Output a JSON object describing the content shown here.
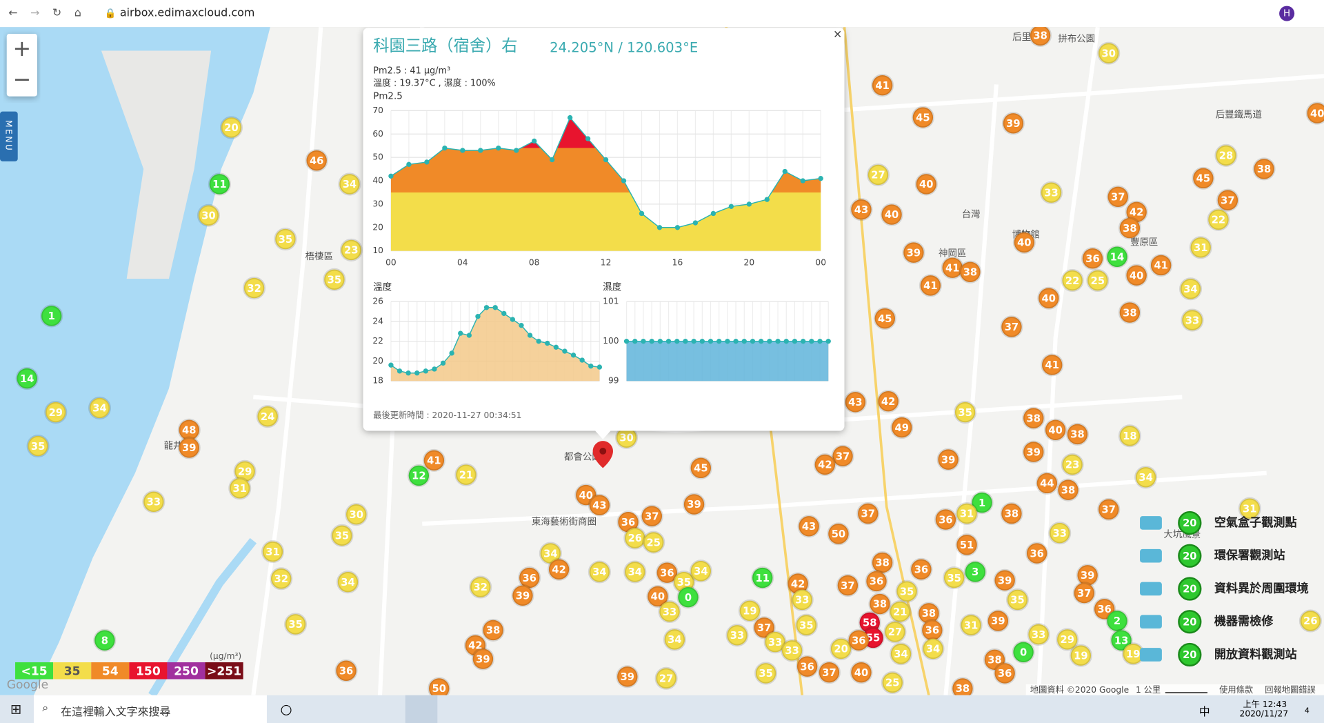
{
  "browser": {
    "url": "airbox.edimaxcloud.com",
    "profile": "H"
  },
  "map": {
    "menu": "MENU",
    "zoom_in": "+",
    "zoom_out": "−",
    "places": [
      "梧棲區",
      "龍井",
      "神岡區",
      "豐原區",
      "東海藝術街商圈",
      "都會公園",
      "后里",
      "拼布公園",
      "后豐鐵馬道",
      "台灣",
      "博物館",
      "大坑風景"
    ],
    "markers": [
      20,
      11,
      30,
      46,
      34,
      35,
      23,
      35,
      32,
      1,
      14,
      34,
      29,
      35,
      48,
      39,
      24,
      29,
      31,
      33,
      30,
      35,
      31,
      32,
      34,
      35,
      8,
      36,
      41,
      12,
      21,
      40,
      43,
      30,
      37,
      36,
      26,
      25,
      39,
      45,
      34,
      42,
      36,
      32,
      39,
      34,
      34,
      36,
      35,
      34,
      40,
      0,
      33,
      34,
      38,
      42,
      39,
      39,
      27,
      50,
      38,
      30,
      41,
      45,
      39,
      27,
      40,
      43,
      40,
      39,
      41,
      38,
      41,
      40,
      33,
      37,
      42,
      38,
      28,
      45,
      37,
      38,
      22,
      31,
      36,
      14,
      40,
      41,
      22,
      25,
      34,
      40,
      38,
      33,
      45,
      37,
      41,
      42,
      43,
      49,
      35,
      38,
      40,
      38,
      39,
      23,
      18,
      39,
      37,
      42,
      44,
      38,
      34,
      1,
      38,
      37,
      37,
      31,
      36,
      51,
      33,
      36,
      43,
      50,
      38,
      36,
      35,
      3,
      39,
      39,
      37,
      35,
      11,
      42,
      37,
      36,
      35,
      38,
      21,
      38,
      33,
      19,
      37,
      35,
      58,
      55,
      27,
      36,
      31,
      39,
      33,
      29,
      36,
      2,
      13,
      0,
      19,
      19,
      26,
      33,
      33,
      33,
      20,
      36,
      34,
      34,
      38,
      40,
      25,
      36,
      35,
      36,
      37,
      38,
      40,
      31
    ],
    "attribution": "地圖資料 ©2020 Google",
    "scale": "1 公里",
    "terms": "使用條款",
    "report": "回報地圖錯誤",
    "logo": "Google"
  },
  "legend": {
    "unit": "(μg/m³)",
    "levels": [
      {
        "value": 15,
        "label": "<15",
        "color": "#3ee03e"
      },
      {
        "value": 35,
        "color": "#f3dd4a"
      },
      {
        "value": 54,
        "color": "#f08a28"
      },
      {
        "value": 150,
        "color": "#e8142e"
      },
      {
        "value": 250,
        "color": "#a1309e"
      },
      {
        "value": 251,
        "label": ">251",
        "color": "#7a0d18"
      }
    ]
  },
  "stations_legend": {
    "badge": 20,
    "items": [
      "空氣盒子觀測點",
      "環保署觀測站",
      "資料異於周圍環境",
      "機器需檢修",
      "開放資料觀測站"
    ]
  },
  "popup": {
    "close": "×",
    "title": "科園三路（宿舍）右",
    "coords": "24.205°N / 120.603°E",
    "pm25_line": "Pm2.5 : 41 μg/m³",
    "weather_line": "溫度 : 19.37°C , 濕度 : 100%",
    "updated": "最後更新時間 : 2020-11-27 00:34:51"
  },
  "chart_data": [
    {
      "type": "area",
      "title": "Pm2.5",
      "x": [
        0,
        1,
        2,
        3,
        4,
        5,
        6,
        7,
        8,
        9,
        10,
        11,
        12,
        13,
        14,
        15,
        16,
        17,
        18,
        19,
        20,
        21,
        22,
        23,
        24
      ],
      "xlim": [
        0,
        24
      ],
      "xticks": [
        {
          "value": 0,
          "label": "00"
        },
        {
          "value": 4,
          "label": "04"
        },
        {
          "value": 8,
          "label": "08"
        },
        12,
        16,
        20,
        {
          "value": 24,
          "label": "00"
        }
      ],
      "ylim": [
        10,
        70
      ],
      "yticks": [
        10,
        20,
        30,
        40,
        50,
        60,
        70
      ],
      "values": [
        42,
        47,
        48,
        54,
        53,
        53,
        54,
        53,
        57,
        49,
        67,
        58,
        49,
        40,
        26,
        20,
        20,
        22,
        26,
        29,
        30,
        32,
        44,
        40,
        41
      ],
      "color": "#2bb3b1"
    },
    {
      "type": "area",
      "title": "溫度",
      "x": [
        0,
        1,
        2,
        3,
        4,
        5,
        6,
        7,
        8,
        9,
        10,
        11,
        12,
        13,
        14,
        15,
        16,
        17,
        18,
        19,
        20,
        21,
        22,
        23,
        24
      ],
      "xlim": [
        0,
        24
      ],
      "ylim": [
        18,
        26
      ],
      "yticks": [
        18,
        20,
        22,
        24,
        26
      ],
      "values": [
        19.6,
        19.0,
        18.8,
        18.8,
        19.0,
        19.2,
        19.8,
        20.8,
        22.8,
        22.6,
        24.5,
        25.4,
        25.4,
        24.8,
        24.2,
        23.6,
        22.6,
        22.0,
        21.8,
        21.4,
        21.0,
        20.6,
        20.1,
        19.5,
        19.4
      ],
      "color": "#2bb3b1",
      "fill": "#f3c98a"
    },
    {
      "type": "area",
      "title": "濕度",
      "x": [
        0,
        1,
        2,
        3,
        4,
        5,
        6,
        7,
        8,
        9,
        10,
        11,
        12,
        13,
        14,
        15,
        16,
        17,
        18,
        19,
        20,
        21,
        22,
        23,
        24
      ],
      "xlim": [
        0,
        24
      ],
      "ylim": [
        99,
        101
      ],
      "yticks": [
        99,
        100,
        101
      ],
      "values": [
        100,
        100,
        100,
        100,
        100,
        100,
        100,
        100,
        100,
        100,
        100,
        100,
        100,
        100,
        100,
        100,
        100,
        100,
        100,
        100,
        100,
        100,
        100,
        100,
        100
      ],
      "color": "#2bb3b1",
      "fill": "#5fb4da"
    }
  ],
  "taskbar": {
    "search": "在這裡輸入文字來搜尋",
    "ime": "中",
    "time": "上午 12:43",
    "date": "2020/11/27",
    "notifications": "4"
  }
}
